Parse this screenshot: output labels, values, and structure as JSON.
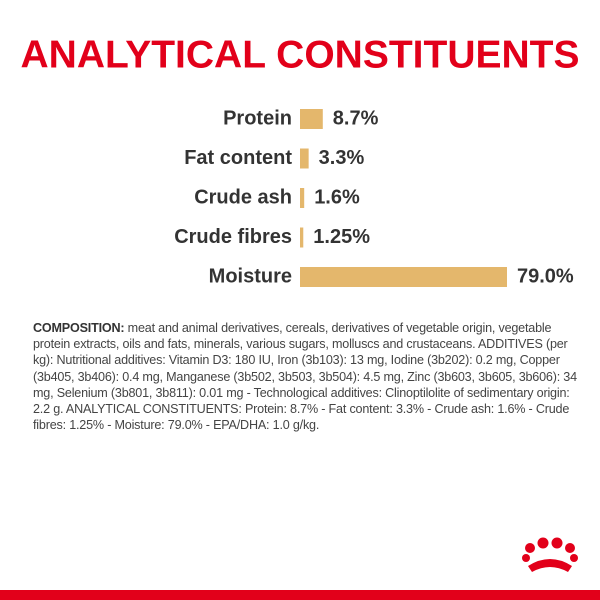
{
  "chart_data": {
    "type": "hbar",
    "title": "ANALYTICAL CONSTITUENTS",
    "categories": [
      "Protein",
      "Fat content",
      "Crude ash",
      "Crude fibres",
      "Moisture"
    ],
    "values": [
      8.7,
      3.3,
      1.6,
      1.25,
      79.0
    ],
    "value_labels": [
      "8.7%",
      "3.3%",
      "1.6%",
      "1.25%",
      "79.0%"
    ],
    "color": "#e4b76c"
  },
  "composition": {
    "label": "COMPOSITION:",
    "text": "meat and animal derivatives, cereals, derivatives of vegetable origin, vegetable protein extracts, oils and fats, minerals, various sugars, molluscs and crustaceans. ADDITIVES (per kg): Nutritional additives: Vitamin D3: 180 IU, Iron (3b103): 13 mg, Iodine (3b202): 0.2 mg, Copper (3b405, 3b406): 0.4 mg, Manganese (3b502, 3b503, 3b504): 4.5 mg, Zinc (3b603, 3b605, 3b606): 34 mg, Selenium (3b801, 3b811): 0.01 mg - Technological additives: Clinoptilolite of sedimentary origin: 2.2 g. ANALYTICAL CONSTITUENTS: Protein: 8.7% - Fat content: 3.3% - Crude ash: 1.6% - Crude fibres: 1.25% - Moisture: 79.0% - EPA/DHA: 1.0 g/kg."
  }
}
